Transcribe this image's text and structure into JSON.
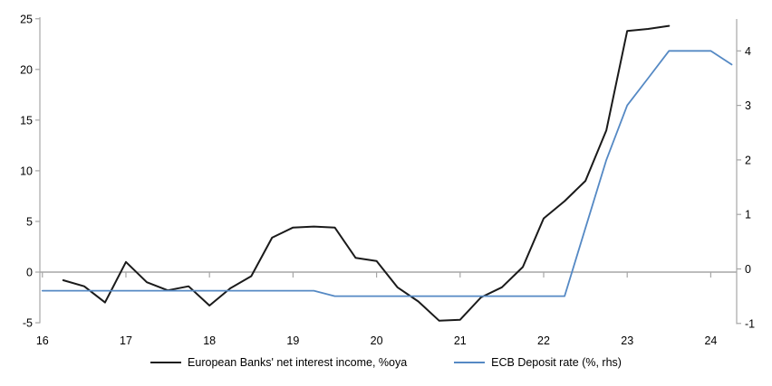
{
  "chart_data": {
    "type": "line",
    "title": "",
    "xlabel": "",
    "ylabel_left": "",
    "ylabel_right": "",
    "grid": "off",
    "zero_line": true,
    "legend_position": "bottom-center",
    "x_axis": {
      "ticks": [
        16,
        17,
        18,
        19,
        20,
        21,
        22,
        23,
        24
      ],
      "range": [
        15.97,
        24.31
      ]
    },
    "left_axis": {
      "ticks": [
        25,
        20,
        15,
        10,
        5,
        0,
        -5
      ],
      "range": [
        -5,
        25.1
      ]
    },
    "right_axis": {
      "ticks": [
        4,
        3,
        2,
        1,
        0,
        -1
      ],
      "range": [
        -1,
        4.6
      ]
    },
    "series": [
      {
        "name": "European Banks' net interest income, %oya",
        "axis": "left",
        "color": "#1a1a1a",
        "line_width": 2,
        "x": [
          16.25,
          16.5,
          16.75,
          17.0,
          17.25,
          17.5,
          17.75,
          18.0,
          18.25,
          18.5,
          18.75,
          19.0,
          19.25,
          19.5,
          19.75,
          20.0,
          20.25,
          20.5,
          20.75,
          21.0,
          21.25,
          21.5,
          21.75,
          22.0,
          22.25,
          22.5,
          22.75,
          23.0,
          23.25,
          23.5
        ],
        "y": [
          -0.8,
          -1.4,
          -3.0,
          1.0,
          -1.0,
          -1.8,
          -1.4,
          -3.3,
          -1.6,
          -0.4,
          3.4,
          4.4,
          4.5,
          4.4,
          1.4,
          1.1,
          -1.5,
          -2.9,
          -4.8,
          -4.7,
          -2.5,
          -1.5,
          0.5,
          5.3,
          7.0,
          9.0,
          14.0,
          23.8,
          24.0,
          24.3
        ]
      },
      {
        "name": "ECB Deposit rate (%, rhs)",
        "axis": "right",
        "color": "#5589c4",
        "line_width": 1.8,
        "x": [
          16.0,
          16.25,
          16.5,
          16.75,
          17.0,
          17.25,
          17.5,
          17.75,
          18.0,
          18.25,
          18.5,
          18.75,
          19.0,
          19.25,
          19.5,
          19.75,
          20.0,
          20.25,
          20.5,
          20.75,
          21.0,
          21.25,
          21.5,
          21.75,
          22.0,
          22.25,
          22.5,
          22.75,
          23.0,
          23.25,
          23.5,
          23.75,
          24.0,
          24.25
        ],
        "y": [
          -0.4,
          -0.4,
          -0.4,
          -0.4,
          -0.4,
          -0.4,
          -0.4,
          -0.4,
          -0.4,
          -0.4,
          -0.4,
          -0.4,
          -0.4,
          -0.4,
          -0.5,
          -0.5,
          -0.5,
          -0.5,
          -0.5,
          -0.5,
          -0.5,
          -0.5,
          -0.5,
          -0.5,
          -0.5,
          -0.5,
          0.75,
          2.0,
          3.0,
          3.5,
          4.0,
          4.0,
          4.0,
          3.75
        ]
      }
    ],
    "axis_color": "#a6a6a6",
    "tick_label_color": "#000000"
  }
}
